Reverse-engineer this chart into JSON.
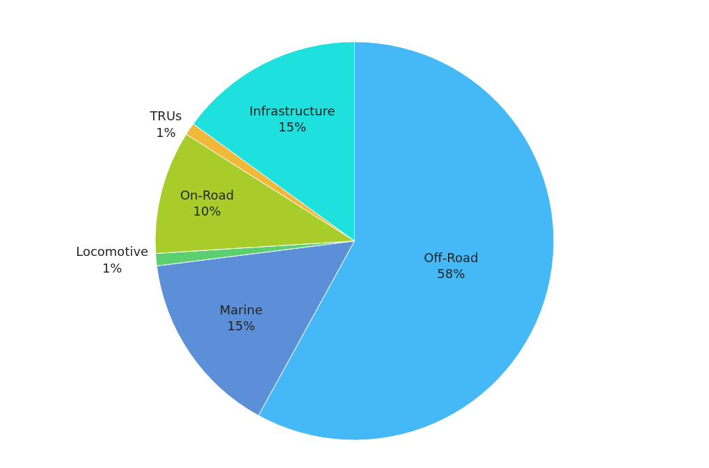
{
  "chart_data": {
    "type": "pie",
    "categories": [
      "Off-Road",
      "Marine",
      "Locomotive",
      "On-Road",
      "TRUs",
      "Infrastructure"
    ],
    "values": [
      58,
      15,
      1,
      10,
      1,
      15
    ],
    "value_labels": [
      "58%",
      "15%",
      "1%",
      "10%",
      "1%",
      "15%"
    ],
    "colors": [
      "#45b9f7",
      "#5b8fd8",
      "#5ccf6e",
      "#a8cc2a",
      "#f2b83a",
      "#1ee0dc"
    ],
    "legend": false
  }
}
